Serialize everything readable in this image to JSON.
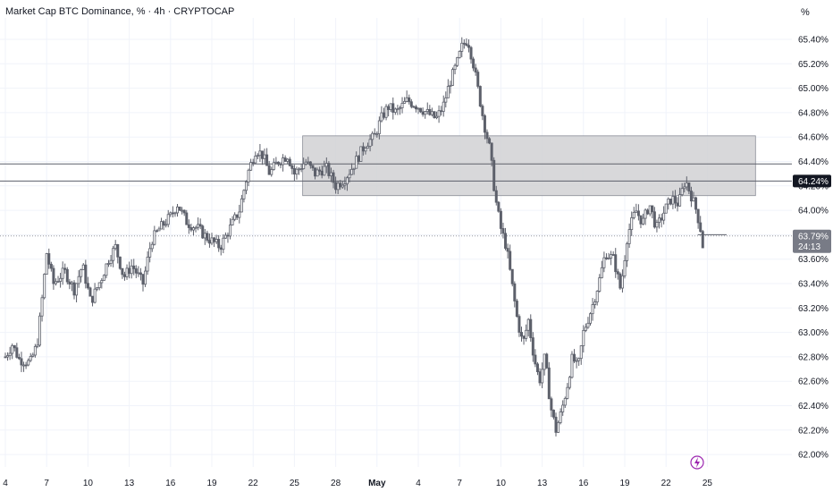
{
  "header": {
    "title": "Market Cap BTC Dominance, % · 4h · CRYPTOCAP",
    "unit": "%"
  },
  "colors": {
    "candle": "#5d606b",
    "zone_fill": "#d1d1d4",
    "zone_border": "#8a8d96",
    "level_line": "#5d606b",
    "current_line": "#9598a1",
    "badge_dark": "#131722",
    "badge_grey": "#787b86",
    "icon_purple": "#9c27b0"
  },
  "icons": {
    "flash": "lightning-icon"
  },
  "badges": {
    "level": "64.24%",
    "current_price": "63.79%",
    "countdown": "24:13"
  },
  "chart_data": {
    "type": "candlestick",
    "title": "Market Cap BTC Dominance, % · 4h · CRYPTOCAP",
    "y_unit": "%",
    "ylim": [
      61.95,
      65.65
    ],
    "y_ticks": [
      "65.40%",
      "65.20%",
      "65.00%",
      "64.80%",
      "64.60%",
      "64.40%",
      "64.20%",
      "64.00%",
      "63.80%",
      "63.60%",
      "63.40%",
      "63.20%",
      "63.00%",
      "62.80%",
      "62.60%",
      "62.40%",
      "62.20%",
      "62.00%"
    ],
    "y_tick_values": [
      65.4,
      65.2,
      65.0,
      64.8,
      64.6,
      64.4,
      64.2,
      64.0,
      63.8,
      63.6,
      63.4,
      63.2,
      63.0,
      62.8,
      62.6,
      62.4,
      62.2,
      62.0
    ],
    "x_ticks": [
      {
        "label": "4",
        "day": 4
      },
      {
        "label": "7",
        "day": 7
      },
      {
        "label": "10",
        "day": 10
      },
      {
        "label": "13",
        "day": 13
      },
      {
        "label": "16",
        "day": 16
      },
      {
        "label": "19",
        "day": 19
      },
      {
        "label": "22",
        "day": 22
      },
      {
        "label": "25",
        "day": 25
      },
      {
        "label": "28",
        "day": 28
      },
      {
        "label": "May",
        "day": 31,
        "bold": true
      },
      {
        "label": "4",
        "day": 34
      },
      {
        "label": "7",
        "day": 37
      },
      {
        "label": "10",
        "day": 40
      },
      {
        "label": "13",
        "day": 43
      },
      {
        "label": "16",
        "day": 46
      },
      {
        "label": "19",
        "day": 49
      },
      {
        "label": "22",
        "day": 52
      },
      {
        "label": "25",
        "day": 55
      }
    ],
    "x_range_days": [
      4,
      59.2
    ],
    "price_path": [
      [
        4.0,
        62.8
      ],
      [
        4.5,
        62.9
      ],
      [
        5.0,
        62.78
      ],
      [
        5.8,
        62.75
      ],
      [
        6.3,
        62.9
      ],
      [
        6.6,
        63.2
      ],
      [
        7.0,
        63.65
      ],
      [
        7.5,
        63.4
      ],
      [
        8.3,
        63.5
      ],
      [
        9.0,
        63.35
      ],
      [
        9.6,
        63.55
      ],
      [
        10.2,
        63.25
      ],
      [
        11.0,
        63.45
      ],
      [
        11.5,
        63.6
      ],
      [
        12.0,
        63.7
      ],
      [
        12.6,
        63.45
      ],
      [
        13.2,
        63.55
      ],
      [
        14.0,
        63.4
      ],
      [
        14.6,
        63.75
      ],
      [
        15.2,
        63.85
      ],
      [
        16.0,
        63.95
      ],
      [
        16.5,
        64.05
      ],
      [
        17.2,
        63.9
      ],
      [
        18.0,
        63.85
      ],
      [
        18.6,
        63.78
      ],
      [
        19.6,
        63.7
      ],
      [
        20.3,
        63.85
      ],
      [
        21.0,
        64.0
      ],
      [
        21.6,
        64.3
      ],
      [
        22.2,
        64.5
      ],
      [
        22.7,
        64.45
      ],
      [
        23.2,
        64.3
      ],
      [
        23.8,
        64.4
      ],
      [
        24.5,
        64.45
      ],
      [
        25.0,
        64.3
      ],
      [
        25.8,
        64.4
      ],
      [
        26.5,
        64.3
      ],
      [
        27.3,
        64.35
      ],
      [
        28.0,
        64.2
      ],
      [
        28.6,
        64.25
      ],
      [
        29.2,
        64.35
      ],
      [
        29.7,
        64.45
      ],
      [
        30.2,
        64.55
      ],
      [
        30.8,
        64.6
      ],
      [
        31.3,
        64.75
      ],
      [
        31.8,
        64.85
      ],
      [
        32.4,
        64.8
      ],
      [
        33.2,
        64.9
      ],
      [
        34.0,
        64.85
      ],
      [
        34.6,
        64.8
      ],
      [
        35.3,
        64.75
      ],
      [
        35.8,
        64.85
      ],
      [
        36.3,
        65.05
      ],
      [
        36.8,
        65.2
      ],
      [
        37.2,
        65.35
      ],
      [
        37.6,
        65.4
      ],
      [
        38.0,
        65.2
      ],
      [
        38.4,
        64.95
      ],
      [
        38.8,
        64.7
      ],
      [
        39.2,
        64.5
      ],
      [
        39.6,
        64.1
      ],
      [
        40.0,
        63.85
      ],
      [
        40.4,
        63.7
      ],
      [
        40.8,
        63.4
      ],
      [
        41.2,
        63.1
      ],
      [
        41.6,
        62.9
      ],
      [
        42.0,
        63.1
      ],
      [
        42.4,
        62.8
      ],
      [
        42.8,
        62.6
      ],
      [
        43.2,
        62.8
      ],
      [
        43.6,
        62.4
      ],
      [
        44.0,
        62.2
      ],
      [
        44.4,
        62.35
      ],
      [
        44.8,
        62.55
      ],
      [
        45.2,
        62.8
      ],
      [
        45.6,
        62.7
      ],
      [
        46.0,
        63.0
      ],
      [
        46.6,
        63.2
      ],
      [
        47.1,
        63.4
      ],
      [
        47.6,
        63.65
      ],
      [
        48.2,
        63.6
      ],
      [
        48.7,
        63.35
      ],
      [
        49.2,
        63.8
      ],
      [
        49.8,
        64.0
      ],
      [
        50.3,
        63.9
      ],
      [
        50.8,
        64.05
      ],
      [
        51.3,
        63.85
      ],
      [
        51.9,
        64.0
      ],
      [
        52.4,
        64.1
      ],
      [
        52.9,
        64.05
      ],
      [
        53.4,
        64.25
      ],
      [
        53.9,
        64.1
      ],
      [
        54.2,
        64.0
      ],
      [
        54.5,
        63.85
      ],
      [
        54.8,
        63.6
      ]
    ],
    "zone": {
      "x_start_day": 25.6,
      "x_end_day": 58.5,
      "y_low": 64.12,
      "y_high": 64.61
    },
    "horizontal_levels": [
      64.38,
      64.24
    ],
    "current_price": 63.79,
    "current_price_line": {
      "x_start_day": 54.3,
      "x_end_day": 56.4
    },
    "grid": true,
    "legend": "none"
  }
}
